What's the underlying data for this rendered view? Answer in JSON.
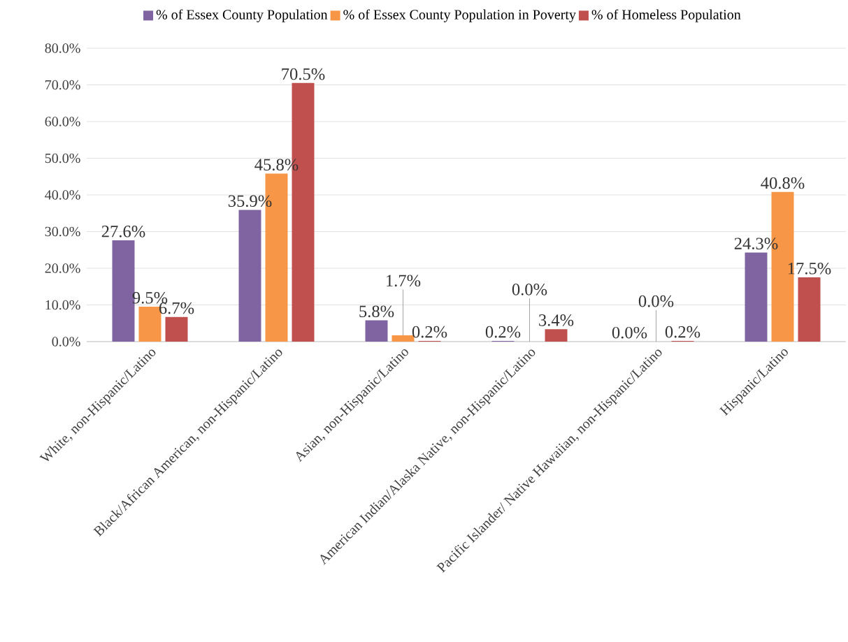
{
  "chart_data": {
    "type": "bar",
    "categories": [
      "White, non-Hispanic/Latino",
      "Black/African American, non-Hispanic/Latino",
      "Asian, non-Hispanic/Latino",
      "American Indian/Alaska Native, non-Hispanic/Latino",
      "Pacific Islander/ Native Hawaiian, non-Hispanic/Latino",
      "Hispanic/Latino"
    ],
    "series": [
      {
        "name": "% of Essex County Population",
        "color": "#8064a2",
        "values": [
          27.6,
          35.9,
          5.8,
          0.2,
          0.0,
          24.3
        ],
        "value_labels": [
          "27.6%",
          "35.9%",
          "5.8%",
          "0.2%",
          "0.0%",
          "24.3%"
        ]
      },
      {
        "name": "% of Essex County Population in Poverty",
        "color": "#f79646",
        "values": [
          9.5,
          45.8,
          1.7,
          0.0,
          0.0,
          40.8
        ],
        "value_labels": [
          "9.5%",
          "45.8%",
          "1.7%",
          "0.0%",
          "0.0%",
          "40.8%"
        ]
      },
      {
        "name": "% of Homeless Population",
        "color": "#c0504d",
        "values": [
          6.7,
          70.5,
          0.2,
          3.4,
          0.2,
          17.5
        ],
        "value_labels": [
          "6.7%",
          "70.5%",
          "0.2%",
          "3.4%",
          "0.2%",
          "17.5%"
        ]
      }
    ],
    "ylim": [
      0,
      80
    ],
    "yticks": [
      {
        "value": 0,
        "label": "0.0%"
      },
      {
        "value": 10,
        "label": "10.0%"
      },
      {
        "value": 20,
        "label": "20.0%"
      },
      {
        "value": 30,
        "label": "30.0%"
      },
      {
        "value": 40,
        "label": "40.0%"
      },
      {
        "value": 50,
        "label": "50.0%"
      },
      {
        "value": 60,
        "label": "60.0%"
      },
      {
        "value": 70,
        "label": "70.0%"
      },
      {
        "value": 80,
        "label": "80.0%"
      }
    ],
    "grid": "y",
    "legend": "top"
  }
}
